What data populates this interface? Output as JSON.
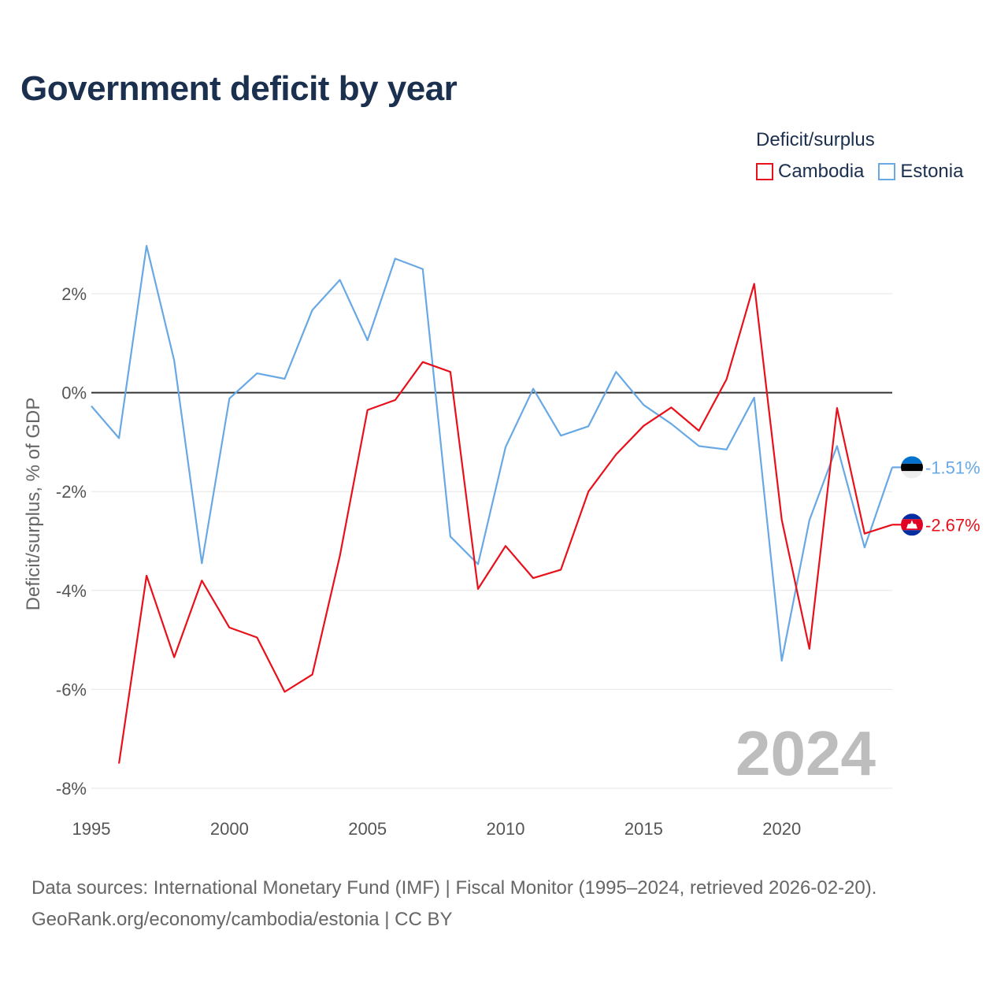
{
  "chart_data": {
    "type": "line",
    "title": "Government deficit by year",
    "ylabel": "Deficit/surplus, % of GDP",
    "xlabel": "",
    "year_watermark": "2024",
    "legend_title": "Deficit/surplus",
    "legend_position": "top-right",
    "xlim": [
      1995,
      2024
    ],
    "ylim": [
      -8.2,
      3.6
    ],
    "x_ticks": [
      1995,
      2000,
      2005,
      2010,
      2015,
      2020
    ],
    "y_ticks": [
      2,
      0,
      -2,
      -4,
      -6,
      -8
    ],
    "y_tick_labels": [
      "2%",
      "0%",
      "-2%",
      "-4%",
      "-6%",
      "-8%"
    ],
    "x": [
      1995,
      1996,
      1997,
      1998,
      1999,
      2000,
      2001,
      2002,
      2003,
      2004,
      2005,
      2006,
      2007,
      2008,
      2009,
      2010,
      2011,
      2012,
      2013,
      2014,
      2015,
      2016,
      2017,
      2018,
      2019,
      2020,
      2021,
      2022,
      2023,
      2024
    ],
    "series": [
      {
        "name": "Cambodia",
        "color": "#e8111b",
        "end_label": "-2.67%",
        "flag": "cambodia-flag-icon",
        "values": [
          null,
          -7.5,
          -3.7,
          -5.35,
          -3.8,
          -4.75,
          -4.95,
          -6.05,
          -5.7,
          -3.3,
          -0.35,
          -0.15,
          0.62,
          0.42,
          -3.97,
          -3.1,
          -3.75,
          -3.58,
          -2.0,
          -1.25,
          -0.67,
          -0.3,
          -0.77,
          0.27,
          2.2,
          -2.57,
          -5.18,
          -0.31,
          -2.85,
          -2.67
        ]
      },
      {
        "name": "Estonia",
        "color": "#68a8e4",
        "end_label": "-1.51%",
        "flag": "estonia-flag-icon",
        "values": [
          -0.27,
          -0.92,
          2.97,
          0.65,
          -3.45,
          -0.12,
          0.39,
          0.28,
          1.67,
          2.28,
          1.06,
          2.71,
          2.5,
          -2.91,
          -3.47,
          -1.1,
          0.08,
          -0.87,
          -0.68,
          0.42,
          -0.25,
          -0.63,
          -1.08,
          -1.15,
          -0.1,
          -5.42,
          -2.58,
          -1.08,
          -3.13,
          -1.51
        ]
      }
    ]
  },
  "footer": {
    "line1": "Data sources: International Monetary Fund (IMF) | Fiscal Monitor (1995–2024, retrieved 2026-02-20).",
    "line2": "GeoRank.org/economy/cambodia/estonia | CC BY"
  }
}
